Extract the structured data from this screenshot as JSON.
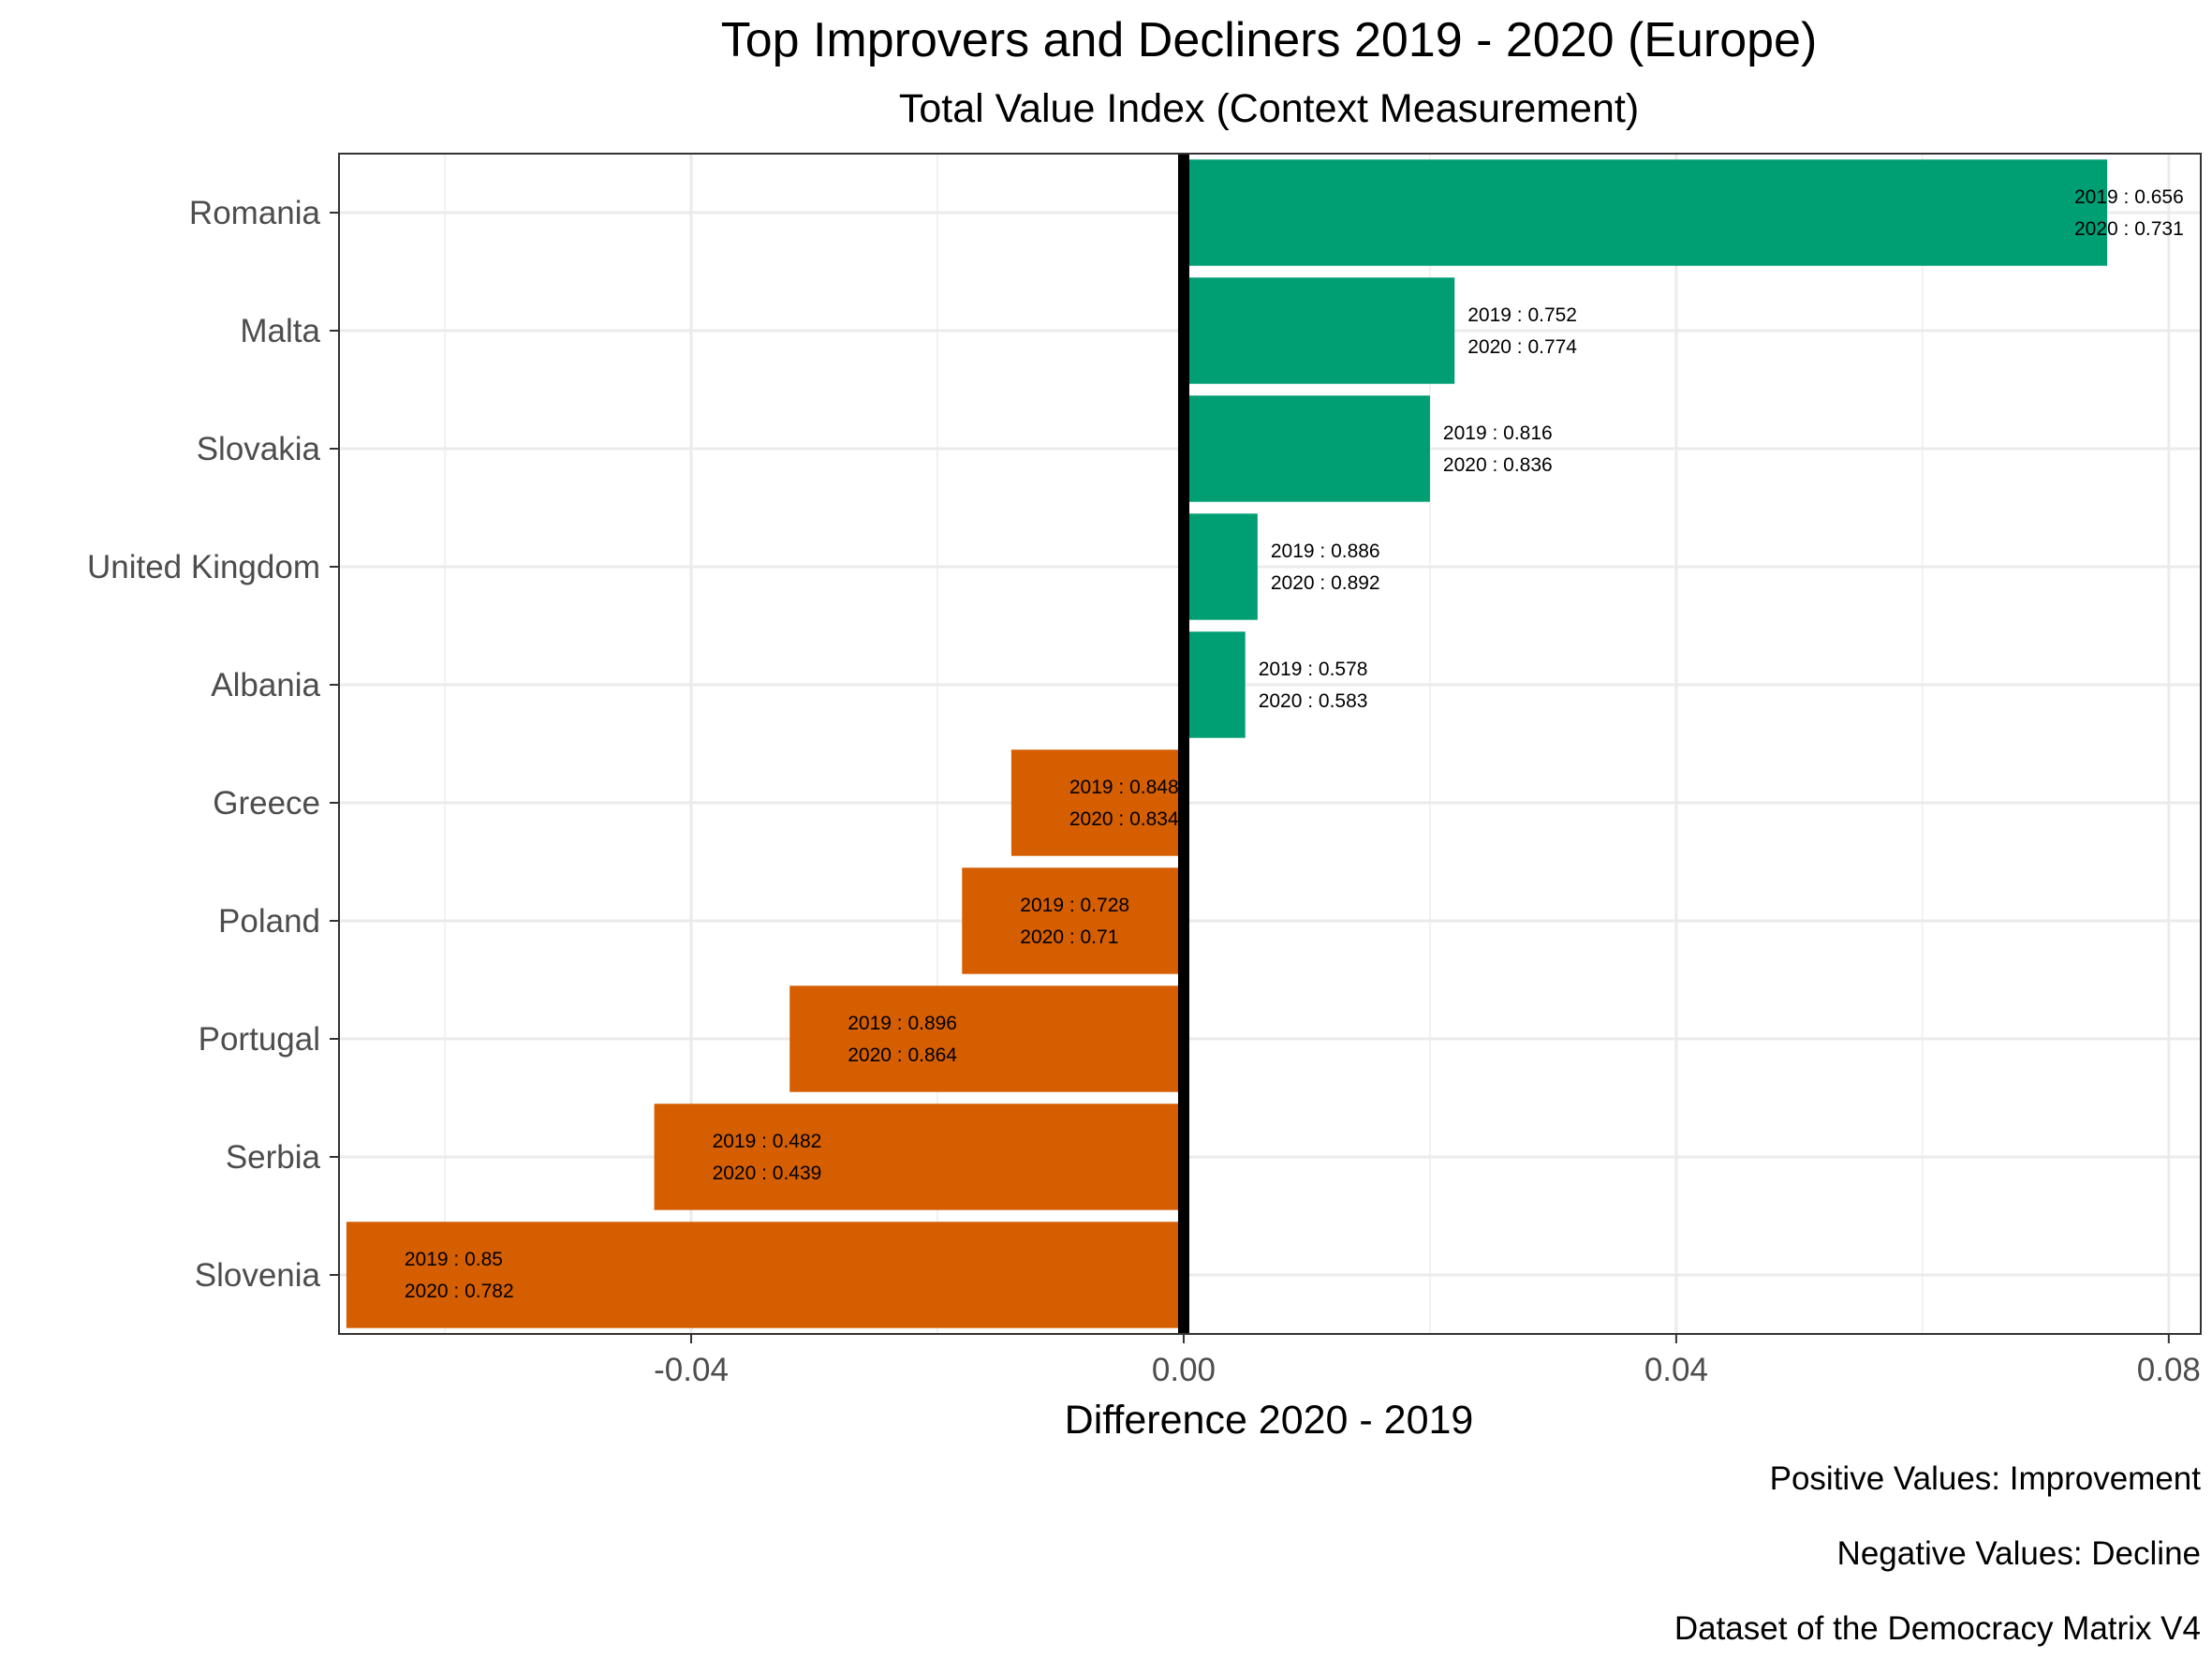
{
  "chart_data": {
    "type": "bar",
    "orientation": "horizontal",
    "title": "Top Improvers and Decliners 2019 - 2020 (Europe)",
    "subtitle": "Total Value Index (Context Measurement)",
    "xlabel": "Difference 2020 - 2019",
    "ylabel": "",
    "xlim": [
      -0.0686,
      0.0826
    ],
    "x_ticks": [
      "-0.04",
      "0.00",
      "0.04",
      "0.08"
    ],
    "x_tick_values": [
      -0.04,
      0.0,
      0.04,
      0.08
    ],
    "grid": true,
    "zero_line": true,
    "colors": {
      "positive": "#009E73",
      "negative": "#D55E00"
    },
    "categories": [
      "Romania",
      "Malta",
      "Slovakia",
      "United Kingdom",
      "Albania",
      "Greece",
      "Poland",
      "Portugal",
      "Serbia",
      "Slovenia"
    ],
    "values": [
      0.075,
      0.022,
      0.02,
      0.006,
      0.005,
      -0.014,
      -0.018,
      -0.032,
      -0.043,
      -0.068
    ],
    "labels_2019": [
      "2019 : 0.656",
      "2019 : 0.752",
      "2019 : 0.816",
      "2019 : 0.886",
      "2019 : 0.578",
      "2019 : 0.848",
      "2019 : 0.728",
      "2019 : 0.896",
      "2019 : 0.482",
      "2019 : 0.85"
    ],
    "labels_2020": [
      "2020 : 0.731",
      "2020 : 0.774",
      "2020 : 0.836",
      "2020 : 0.892",
      "2020 : 0.583",
      "2020 : 0.834",
      "2020 : 0.71",
      "2020 : 0.864",
      "2020 : 0.439",
      "2020 : 0.782"
    ],
    "captions": [
      "Positive Values: Improvement",
      "Negative Values: Decline",
      "Dataset of the Democracy Matrix V4"
    ]
  }
}
